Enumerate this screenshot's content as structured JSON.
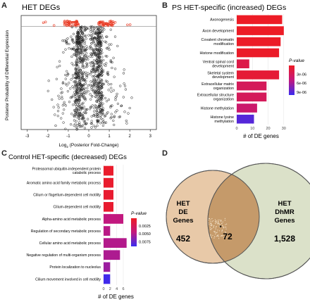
{
  "panels": {
    "a": {
      "letter": "A",
      "title": "HET DEGs"
    },
    "b": {
      "letter": "B",
      "title": "PS HET-specific (increased) DEGs"
    },
    "c": {
      "letter": "C",
      "title": "Control HET-specific (decreased) DEGs"
    },
    "d": {
      "letter": "D"
    }
  },
  "chart_data": [
    {
      "type": "scatter",
      "title": "HET DEGs",
      "xlabel": "Log2 (Posterior Fold-Change)",
      "ylabel": "Posterior Probability of Differential Expression",
      "xlim": [
        -3.3,
        3.3
      ],
      "ylim": [
        0,
        1.05
      ],
      "xticks": [
        "-3",
        "-2",
        "-1",
        "0",
        "1",
        "2",
        "3"
      ],
      "threshold": 0.95,
      "colors": {
        "points": "#222222",
        "significant": "#e8361f",
        "threshold": "#888888"
      }
    },
    {
      "type": "bar",
      "orientation": "horizontal",
      "title": "PS HET-specific (increased) DEGs",
      "xlabel": "# of DE genes",
      "xticks": [
        "0",
        "10",
        "20",
        "30"
      ],
      "xlim": [
        0,
        31
      ],
      "categories": [
        "Axonogenesis",
        "Axon development",
        "Covalent chromatin modification",
        "Histone modification",
        "Ventral spinal cord development",
        "Skeletal system development",
        "Extracellular matrix organization",
        "Extracellular structure organization",
        "Histone methylation",
        "Histone lysine methylation"
      ],
      "labels": [
        [
          "Axonogenesis"
        ],
        [
          "Axon development"
        ],
        [
          "Covalent chromatin",
          "modification"
        ],
        [
          "Histone modification"
        ],
        [
          "Ventral spinal cord",
          "development"
        ],
        [
          "Skeletal system",
          "development"
        ],
        [
          "Extracellular matrix",
          "organization"
        ],
        [
          "Extracellular structure",
          "organization"
        ],
        [
          "Histone methylation"
        ],
        [
          "Histone lysine",
          "methylation"
        ]
      ],
      "values": [
        29,
        30,
        28,
        27,
        8,
        27,
        19,
        19,
        13,
        11
      ],
      "pvalues": [
        1e-07,
        1e-07,
        2e-07,
        3e-07,
        2e-06,
        1e-06,
        3e-06,
        3e-06,
        4e-06,
        9e-06
      ],
      "legend": {
        "title": "P-value",
        "ticks": [
          "3e-06",
          "6e-06",
          "9e-06"
        ],
        "range": [
          0,
          1e-05
        ]
      },
      "colors": {
        "low": "#ee1c24",
        "mid": "#c2187e",
        "high": "#3a2bf0"
      }
    },
    {
      "type": "bar",
      "orientation": "horizontal",
      "title": "Control HET-specific (decreased) DEGs",
      "xlabel": "# of DE genes",
      "xticks": [
        "0",
        "2",
        "4",
        "6"
      ],
      "xlim": [
        0,
        7.5
      ],
      "categories": [
        "Proteasomal ubiquitin-independent protein catabolic process",
        "Aromatic amino acid family metabolic process",
        "Cilium or flagellum-dependent cell motility",
        "Cilium-dependent cell motility",
        "Alpha-amino acid metabolic process",
        "Regulation of secondary metabolic process",
        "Cellular amino acid metabolic process",
        "Negative regulation of multi-organism process",
        "Protein localization to nucleolus",
        "Cilium movement involved in cell motility"
      ],
      "labels": [
        [
          "Proteasomal ubiquitin-independent protein",
          "catabolic process"
        ],
        [
          "Aromatic amino acid family metabolic process"
        ],
        [
          "Cilium or flagellum-dependent cell motility"
        ],
        [
          "Cilium-dependent cell motility"
        ],
        [
          "Alpha-amino acid metabolic process"
        ],
        [
          "Regulation of secondary metabolic process"
        ],
        [
          "Cellular amino acid metabolic process"
        ],
        [
          "Negative regulation of multi-organism process"
        ],
        [
          "Protein localization to nucleolus"
        ],
        [
          "Cilium movement involved in cell motility"
        ]
      ],
      "values": [
        3,
        3,
        3,
        3,
        6,
        2,
        7,
        5,
        2,
        2
      ],
      "pvalues": [
        0.0004,
        0.0005,
        0.0006,
        0.0006,
        0.0045,
        0.0048,
        0.005,
        0.0052,
        0.0058,
        0.0088
      ],
      "legend": {
        "title": "P-value",
        "ticks": [
          "0.0025",
          "0.0050",
          "0.0075"
        ],
        "range": [
          0,
          0.009
        ]
      },
      "colors": {
        "low": "#ee1c24",
        "mid": "#c2187e",
        "high": "#3a2bf0"
      }
    }
  ],
  "venn": {
    "left": {
      "label_lines": [
        "HET",
        "DE",
        "Genes"
      ],
      "count": "452",
      "color": "#e8c9a8"
    },
    "right": {
      "label_lines": [
        "HET",
        "DhMR",
        "Genes"
      ],
      "count": "1,528",
      "color": "#d5dcc0"
    },
    "overlap": {
      "count": "72",
      "marker": "*",
      "color": "#c59a6a"
    }
  }
}
